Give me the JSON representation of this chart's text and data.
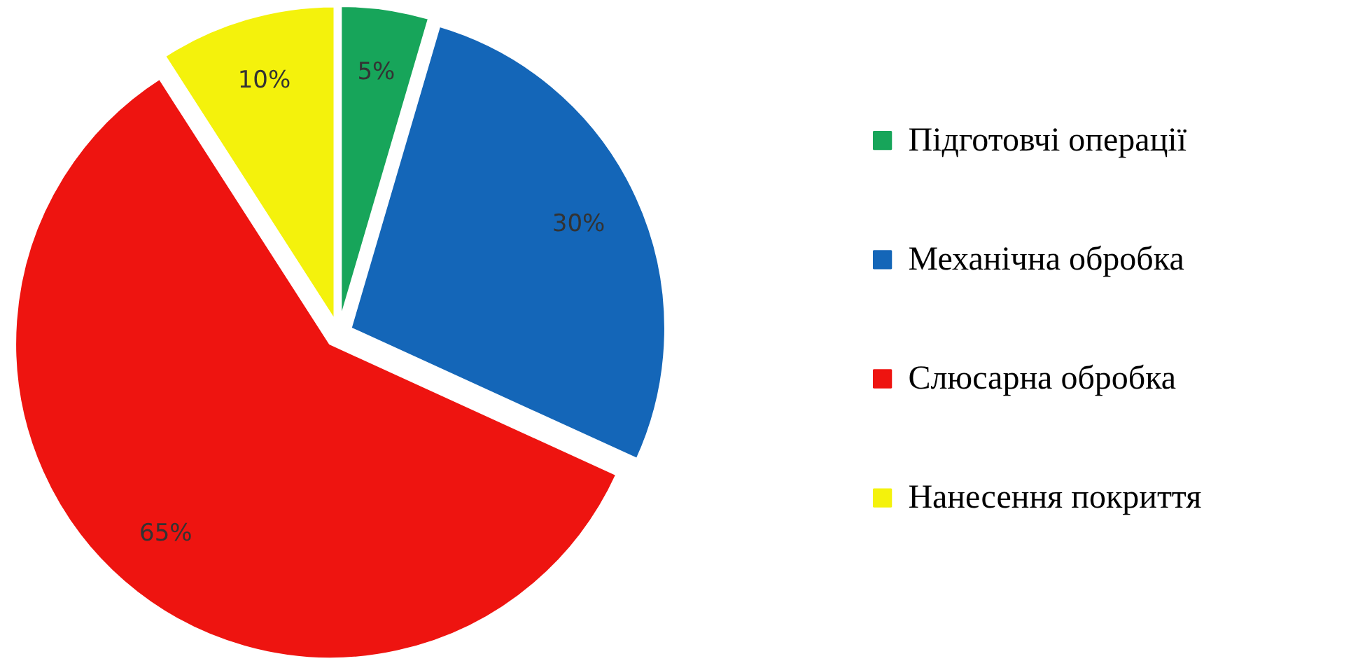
{
  "chart_data": {
    "type": "pie",
    "categories": [
      "Підготовчі операції",
      "Механічна обробка",
      "Слюсарна обробка",
      "Нанесення покриття"
    ],
    "values": [
      5,
      30,
      65,
      10
    ],
    "colors": [
      "#17a55a",
      "#1466b8",
      "#ee1410",
      "#f4f20c"
    ],
    "value_labels": [
      "5%",
      "30%",
      "65%",
      "10%"
    ],
    "legend": "right"
  }
}
